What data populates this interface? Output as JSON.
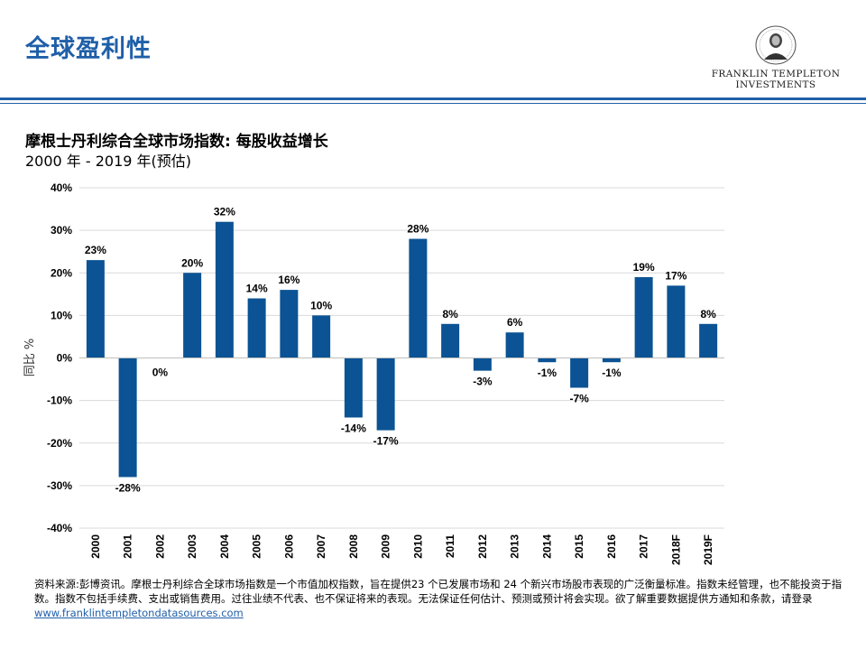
{
  "header": {
    "title": "全球盈利性",
    "logo": {
      "icon": "franklin-portrait-icon",
      "line1": "FRANKLIN TEMPLETON",
      "line2": "INVESTMENTS"
    }
  },
  "chart": {
    "title": "摩根士丹利综合全球市场指数: 每股收益增长",
    "subtitle": "2000 年 - 2019 年(预估)"
  },
  "chart_data": {
    "type": "bar",
    "title": "摩根士丹利综合全球市场指数: 每股收益增长",
    "subtitle": "2000 年 - 2019 年(预估)",
    "ylabel": "同比 %",
    "xlabel": "",
    "ylim": [
      -40,
      40
    ],
    "yticks": [
      40,
      30,
      20,
      10,
      0,
      -10,
      -20,
      -30,
      -40
    ],
    "ytick_labels": [
      "40%",
      "30%",
      "20%",
      "10%",
      "0%",
      "-10%",
      "-20%",
      "-30%",
      "-40%"
    ],
    "grid": true,
    "bar_color": "#0b5394",
    "categories": [
      "2000",
      "2001",
      "2002",
      "2003",
      "2004",
      "2005",
      "2006",
      "2007",
      "2008",
      "2009",
      "2010",
      "2011",
      "2012",
      "2013",
      "2014",
      "2015",
      "2016",
      "2017",
      "2018F",
      "2019F"
    ],
    "values": [
      23,
      -28,
      0,
      20,
      32,
      14,
      16,
      10,
      -14,
      -17,
      28,
      8,
      -3,
      6,
      -1,
      -7,
      -1,
      19,
      17,
      8
    ],
    "data_labels": [
      "23%",
      "-28%",
      "0%",
      "20%",
      "32%",
      "14%",
      "16%",
      "10%",
      "-14%",
      "-17%",
      "28%",
      "8%",
      "-3%",
      "6%",
      "-1%",
      "-7%",
      "-1%",
      "19%",
      "17%",
      "8%"
    ]
  },
  "footnote": {
    "text": "资料来源:彭博资讯。摩根士丹利综合全球市场指数是一个市值加权指数，旨在提供23  个已发展市场和  24 个新兴市场股市表现的广泛衡量标准。指数未经管理，也不能投资于指数。指数不包括手续费、支出或销售费用。过往业绩不代表、也不保证将来的表现。无法保证任何估计、预测或预计将会实现。欲了解重要数据提供方通知和条款，请登录",
    "link": "www.franklintempletondatasources.com"
  },
  "colors": {
    "accent": "#1f5fa8",
    "bar": "#0b5394"
  }
}
